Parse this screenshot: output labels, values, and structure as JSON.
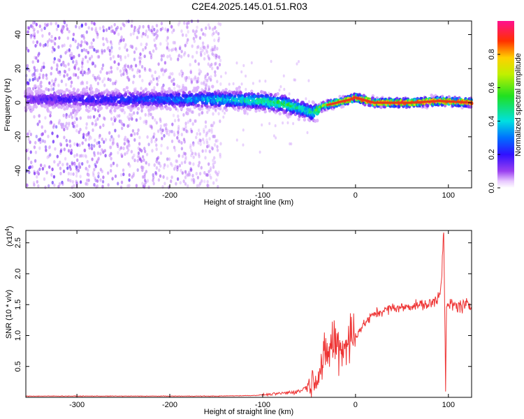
{
  "title": "C2E4.2025.145.01.51.R03",
  "colors": {
    "snr_line": "#ee3333",
    "spectral_points": "#7a2cf0",
    "ridge_core": "#e83a1c"
  },
  "chart_data": [
    {
      "type": "heatmap",
      "name": "spectrogram",
      "xlabel": "Height of straight line (km)",
      "ylabel": "Frequency (Hz)",
      "xlim": [
        -355,
        125
      ],
      "ylim": [
        -50,
        48
      ],
      "x_ticks": [
        -300,
        -200,
        -100,
        0,
        100
      ],
      "y_ticks": [
        -40,
        -20,
        0,
        20,
        40
      ],
      "colorbar": {
        "label": "Normalized spectral amplitude",
        "range": [
          0.0,
          1.0
        ],
        "ticks": [
          0.0,
          0.2,
          0.4,
          0.6,
          0.8
        ],
        "colormap": "rainbow (purple-blue-cyan-green-yellow-red-magenta)"
      },
      "ridge": {
        "x": [
          -355,
          -300,
          -250,
          -200,
          -150,
          -100,
          -75,
          -55,
          -45,
          -35,
          -20,
          -5,
          0,
          20,
          60,
          90,
          125
        ],
        "frequency_hz": [
          2,
          2,
          2,
          2,
          2,
          1,
          -1,
          -4,
          -6,
          -2,
          0,
          2,
          3,
          0,
          0,
          1,
          0
        ],
        "amplitude": [
          0.15,
          0.2,
          0.25,
          0.3,
          0.4,
          0.5,
          0.55,
          0.45,
          0.5,
          0.7,
          0.85,
          0.9,
          0.95,
          1.0,
          1.0,
          1.0,
          1.0
        ]
      },
      "scatter_region": {
        "x_from": -355,
        "x_to": -145,
        "frequency_range": [
          -50,
          48
        ]
      }
    },
    {
      "type": "line",
      "name": "snr",
      "xlabel": "Height of straight line (km)",
      "ylabel": "SNR (10 * v/v)",
      "scale_label": "(x10",
      "scale_exponent": "4",
      "xlim": [
        -355,
        125
      ],
      "ylim": [
        0.0,
        2.7
      ],
      "x_ticks": [
        -300,
        -200,
        -100,
        0,
        100
      ],
      "y_ticks": [
        0.5,
        1.0,
        1.5,
        2.0,
        2.5
      ],
      "x": [
        -355,
        -300,
        -250,
        -200,
        -150,
        -110,
        -90,
        -70,
        -60,
        -50,
        -40,
        -30,
        -25,
        -20,
        -15,
        -10,
        0,
        10,
        20,
        30,
        40,
        50,
        60,
        70,
        80,
        88,
        92,
        95,
        97,
        98,
        100,
        110,
        125
      ],
      "values": [
        0.02,
        0.02,
        0.02,
        0.02,
        0.02,
        0.03,
        0.05,
        0.08,
        0.1,
        0.2,
        0.4,
        0.7,
        0.9,
        0.85,
        0.8,
        0.9,
        1.0,
        1.2,
        1.35,
        1.4,
        1.45,
        1.45,
        1.48,
        1.5,
        1.5,
        1.6,
        1.8,
        2.7,
        0.15,
        1.4,
        1.5,
        1.48,
        1.48
      ]
    }
  ]
}
